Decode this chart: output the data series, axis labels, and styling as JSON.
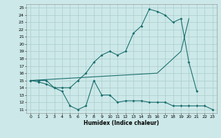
{
  "xlabel": "Humidex (Indice chaleur)",
  "bg_color": "#cce8e8",
  "grid_color": "#aacccc",
  "line_color": "#1a6e6e",
  "xlim": [
    -0.5,
    23.5
  ],
  "ylim": [
    10.5,
    25.5
  ],
  "yticks": [
    11,
    12,
    13,
    14,
    15,
    16,
    17,
    18,
    19,
    20,
    21,
    22,
    23,
    24,
    25
  ],
  "xticks": [
    0,
    1,
    2,
    3,
    4,
    5,
    6,
    7,
    8,
    9,
    10,
    11,
    12,
    13,
    14,
    15,
    16,
    17,
    18,
    19,
    20,
    21,
    22,
    23
  ],
  "line1_x": [
    0,
    1,
    2,
    3,
    4,
    5,
    6,
    7,
    8,
    9,
    10,
    11,
    12,
    13,
    14,
    15,
    16,
    17,
    18,
    19,
    20,
    21,
    22,
    23
  ],
  "line1_y": [
    15,
    14.8,
    14.5,
    14,
    13.5,
    11.5,
    11,
    11.5,
    15,
    13,
    13,
    12,
    12.2,
    12.2,
    12.2,
    12,
    12,
    12,
    11.5,
    11.5,
    11.5,
    11.5,
    11.5,
    11
  ],
  "line2_x": [
    0,
    1,
    2,
    3,
    4,
    5,
    6,
    7,
    8,
    9,
    10,
    11,
    12,
    13,
    14,
    15,
    16,
    17,
    18,
    19,
    20,
    21
  ],
  "line2_y": [
    15,
    15,
    15,
    14,
    14,
    14,
    15,
    16,
    17.5,
    18.5,
    19,
    18.5,
    19,
    21.5,
    22.5,
    24.8,
    24.5,
    24,
    23,
    23.5,
    17.5,
    13.5
  ],
  "line3_x": [
    0,
    16,
    17,
    18,
    19,
    20
  ],
  "line3_y": [
    15,
    16,
    17,
    18,
    19,
    23.5
  ]
}
